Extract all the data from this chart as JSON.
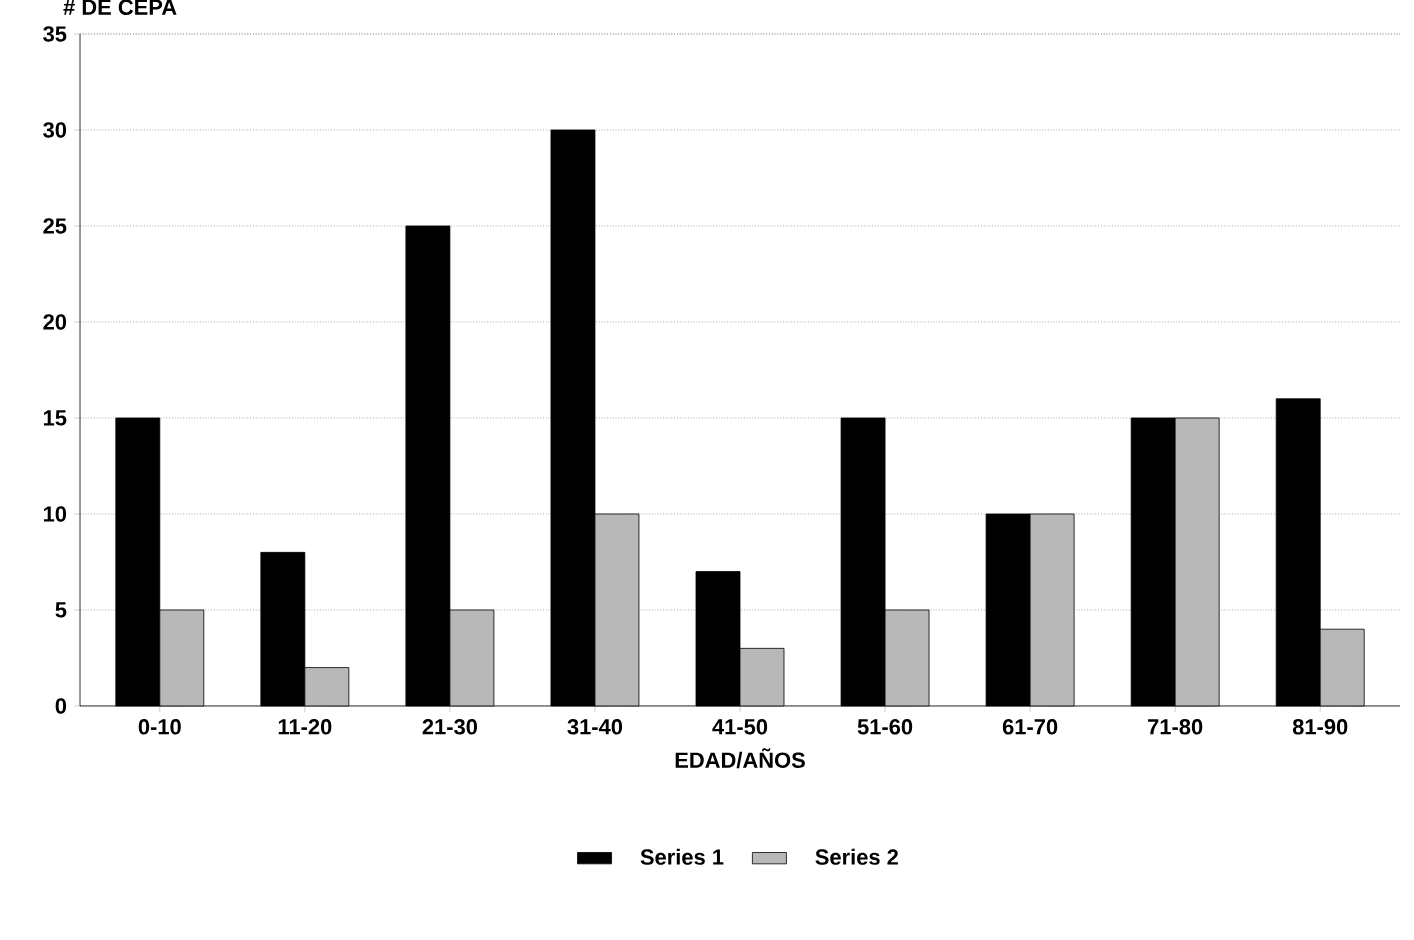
{
  "chart_data": {
    "type": "bar",
    "ylabel": "# DE CEPA",
    "xlabel": "EDAD/AÑOS",
    "categories": [
      "0-10",
      "11-20",
      "21-30",
      "31-40",
      "41-50",
      "51-60",
      "61-70",
      "71-80",
      "81-90"
    ],
    "series": [
      {
        "name": "Series 1",
        "color": "#000000",
        "values": [
          15,
          8,
          25,
          30,
          7,
          15,
          10,
          15,
          16
        ]
      },
      {
        "name": "Series 2",
        "color": "#b8b8b8",
        "values": [
          5,
          2,
          5,
          10,
          3,
          5,
          10,
          15,
          4
        ]
      }
    ],
    "ylim": [
      0,
      35
    ],
    "yticks": [
      0,
      5,
      10,
      15,
      20,
      25,
      30,
      35
    ],
    "grid": "y",
    "legend": "bottom"
  }
}
